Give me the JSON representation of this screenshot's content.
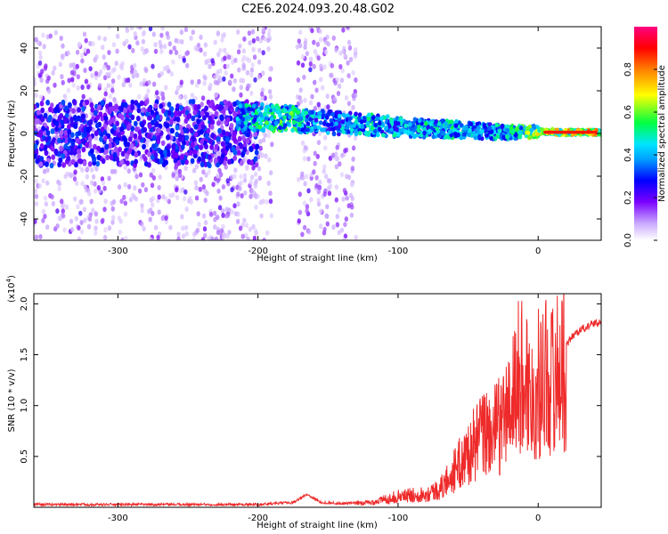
{
  "title": "C2E6.2024.093.20.48.G02",
  "chart_data": [
    {
      "type": "heatmap",
      "xlabel": "Height of straight line (km)",
      "ylabel": "Frequency (Hz)",
      "xlim": [
        -360,
        45
      ],
      "ylim": [
        -50,
        50
      ],
      "xticks": [
        -300,
        -200,
        -100,
        0
      ],
      "yticks": [
        -40,
        -20,
        0,
        20,
        40
      ],
      "colorbar": {
        "label": "Normalized spectral amplitude",
        "range": [
          0,
          1
        ],
        "ticks": [
          0.0,
          0.2,
          0.4,
          0.6,
          0.8
        ],
        "colormap": [
          "#ffffff",
          "#7a00ff",
          "#0000ff",
          "#00e5ff",
          "#00ff00",
          "#ffff00",
          "#ff7f00",
          "#ff0000",
          "#ff0080"
        ]
      },
      "ridge": {
        "note_free": true,
        "x": [
          -215,
          -180,
          -150,
          -120,
          -100,
          -80,
          -60,
          -40,
          -20,
          0,
          20,
          40
        ],
        "frequency": [
          8,
          7,
          5,
          4,
          3,
          2.5,
          2,
          1,
          0.5,
          1,
          0.5,
          0.5
        ],
        "peak_amplitude": [
          0.5,
          0.65,
          0.45,
          0.55,
          0.5,
          0.55,
          0.55,
          0.5,
          0.55,
          0.8,
          0.85,
          0.9
        ]
      }
    },
    {
      "type": "line",
      "xlabel": "Height of straight line (km)",
      "ylabel": "SNR (10 * v/v)",
      "y_multiplier": "(x10",
      "y_multiplier_exp": "4",
      "y_multiplier_close": ")",
      "xlim": [
        -360,
        45
      ],
      "ylim": [
        0,
        2.1
      ],
      "xticks": [
        -300,
        -200,
        -100,
        0
      ],
      "yticks": [
        0.5,
        1.0,
        1.5,
        2.0
      ],
      "series": [
        {
          "color": "#ee2a2a",
          "x": [
            -360,
            -300,
            -240,
            -200,
            -175,
            -165,
            -155,
            -140,
            -120,
            -100,
            -80,
            -70,
            -60,
            -50,
            -40,
            -30,
            -20,
            -15,
            -10,
            -5,
            0,
            5,
            10,
            15,
            20,
            25,
            30,
            35,
            40,
            45
          ],
          "y": [
            0.03,
            0.03,
            0.03,
            0.03,
            0.05,
            0.13,
            0.05,
            0.04,
            0.05,
            0.12,
            0.15,
            0.2,
            0.4,
            0.6,
            0.8,
            0.85,
            1.1,
            1.4,
            1.5,
            1.2,
            1.35,
            1.5,
            1.4,
            1.55,
            1.6,
            1.7,
            1.75,
            1.78,
            1.82,
            1.82
          ]
        }
      ]
    }
  ]
}
